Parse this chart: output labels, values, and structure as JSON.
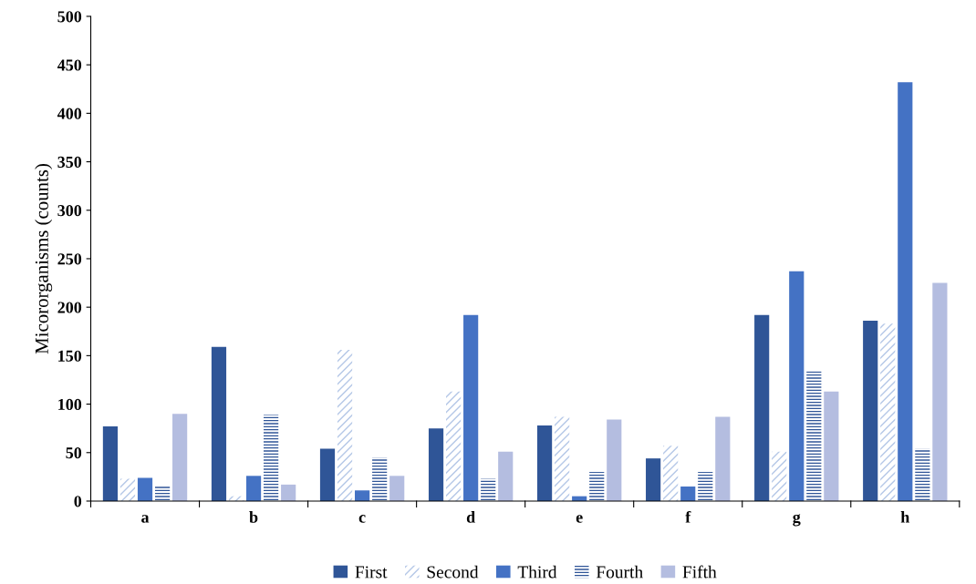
{
  "chart_data": {
    "type": "bar",
    "ylabel": "Micororganisms (counts)",
    "categories": [
      "a",
      "b",
      "c",
      "d",
      "e",
      "f",
      "g",
      "h"
    ],
    "series": [
      {
        "name": "First",
        "color": "#2f5597",
        "values": [
          77,
          159,
          54,
          75,
          78,
          44,
          192,
          186
        ]
      },
      {
        "name": "Second",
        "color": "#b4c7e7",
        "values": [
          23,
          5,
          156,
          113,
          87,
          57,
          51,
          183
        ]
      },
      {
        "name": "Third",
        "color": "#4472c4",
        "values": [
          24,
          26,
          11,
          192,
          5,
          15,
          237,
          432
        ]
      },
      {
        "name": "Fourth",
        "color": "#2f5597",
        "values": [
          16,
          89,
          45,
          23,
          30,
          30,
          134,
          54
        ]
      },
      {
        "name": "Fifth",
        "color": "#b4bde0",
        "values": [
          90,
          17,
          26,
          51,
          84,
          87,
          113,
          225
        ]
      }
    ],
    "ylim": [
      0,
      500
    ],
    "yticks": [
      0,
      50,
      100,
      150,
      200,
      250,
      300,
      350,
      400,
      450,
      500
    ],
    "grid": false,
    "legend": "bottom"
  }
}
